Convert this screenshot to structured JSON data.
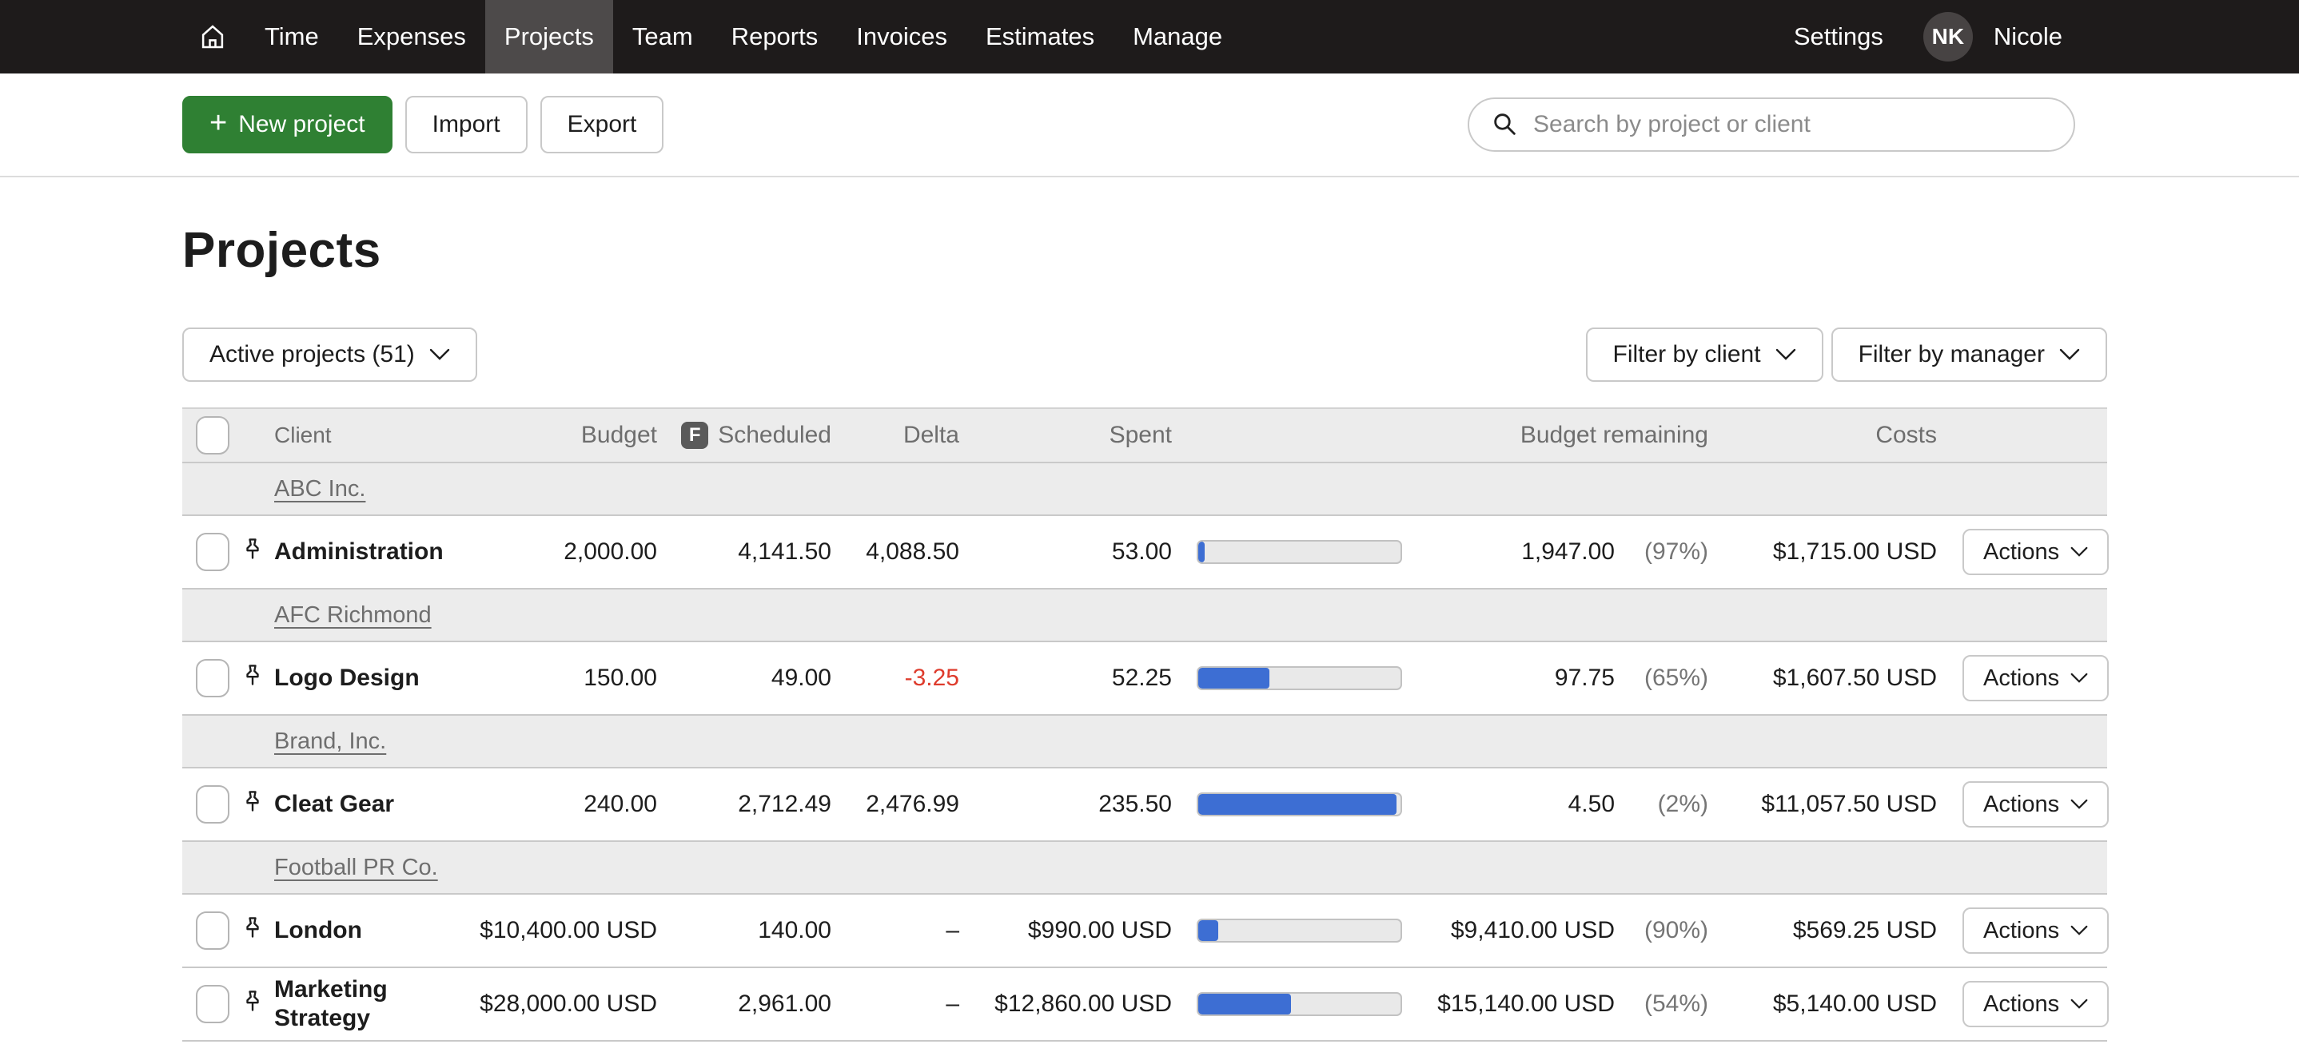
{
  "nav": {
    "items": [
      "Time",
      "Expenses",
      "Projects",
      "Team",
      "Reports",
      "Invoices",
      "Estimates",
      "Manage"
    ],
    "active": "Projects",
    "settings_label": "Settings",
    "avatar_initials": "NK",
    "user_name": "Nicole"
  },
  "toolbar": {
    "new_project_label": "New project",
    "import_label": "Import",
    "export_label": "Export",
    "search_placeholder": "Search by project or client"
  },
  "page": {
    "title": "Projects",
    "status_filter_label": "Active projects (51)",
    "filter_client_label": "Filter by client",
    "filter_manager_label": "Filter by manager"
  },
  "table": {
    "headers": {
      "client": "Client",
      "budget": "Budget",
      "scheduled": "Scheduled",
      "scheduled_icon": "F",
      "delta": "Delta",
      "spent": "Spent",
      "budget_remaining": "Budget remaining",
      "costs": "Costs"
    },
    "actions_label": "Actions",
    "groups": [
      {
        "client": "ABC Inc.",
        "projects": [
          {
            "name": "Administration",
            "budget": "2,000.00",
            "scheduled": "4,141.50",
            "delta": "4,088.50",
            "spent": "53.00",
            "progress_pct": 3,
            "remaining": "1,947.00",
            "remaining_pct": "(97%)",
            "costs": "$1,715.00 USD"
          }
        ]
      },
      {
        "client": "AFC Richmond",
        "projects": [
          {
            "name": "Logo Design",
            "budget": "150.00",
            "scheduled": "49.00",
            "delta": "-3.25",
            "spent": "52.25",
            "progress_pct": 35,
            "remaining": "97.75",
            "remaining_pct": "(65%)",
            "costs": "$1,607.50 USD"
          }
        ]
      },
      {
        "client": "Brand, Inc.",
        "projects": [
          {
            "name": "Cleat Gear",
            "budget": "240.00",
            "scheduled": "2,712.49",
            "delta": "2,476.99",
            "spent": "235.50",
            "progress_pct": 98,
            "remaining": "4.50",
            "remaining_pct": "(2%)",
            "costs": "$11,057.50 USD"
          }
        ]
      },
      {
        "client": "Football PR Co.",
        "projects": [
          {
            "name": "London",
            "budget": "$10,400.00 USD",
            "scheduled": "140.00",
            "delta": "–",
            "spent": "$990.00 USD",
            "progress_pct": 10,
            "remaining": "$9,410.00 USD",
            "remaining_pct": "(90%)",
            "costs": "$569.25 USD"
          },
          {
            "name": "Marketing Strategy",
            "budget": "$28,000.00 USD",
            "scheduled": "2,961.00",
            "delta": "–",
            "spent": "$12,860.00 USD",
            "progress_pct": 46,
            "remaining": "$15,140.00 USD",
            "remaining_pct": "(54%)",
            "costs": "$5,140.00 USD"
          }
        ]
      }
    ]
  },
  "colors": {
    "accent-green": "#2f8033",
    "bar-blue": "#3d6ed3",
    "delta-red": "#de3b2c",
    "nav-bg": "#1e1b1b",
    "nav-active": "#4d4a4a"
  }
}
